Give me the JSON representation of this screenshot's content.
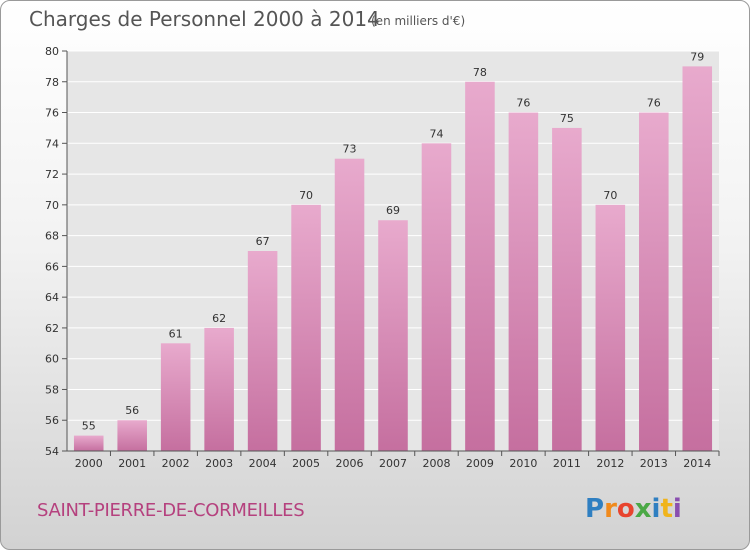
{
  "title": "Charges de Personnel 2000 à 2014",
  "subtitle": "(en milliers d'€)",
  "location": "SAINT-PIERRE-DE-CORMEILLES",
  "logo": {
    "letters": [
      "P",
      "r",
      "o",
      "x",
      "i",
      "t",
      "i"
    ],
    "colors": [
      "#2f7fc1",
      "#f08a1c",
      "#e8442e",
      "#4aa845",
      "#2f7fc1",
      "#f0b41c",
      "#8a4fb0"
    ]
  },
  "colors": {
    "bar": "#c56f9f",
    "bar_light": "#e8aacd",
    "place": "#b5417e",
    "grid": "#ffffff"
  },
  "chart_data": {
    "type": "bar",
    "categories": [
      "2000",
      "2001",
      "2002",
      "2003",
      "2004",
      "2005",
      "2006",
      "2007",
      "2008",
      "2009",
      "2010",
      "2011",
      "2012",
      "2013",
      "2014"
    ],
    "values": [
      55,
      56,
      61,
      62,
      67,
      70,
      73,
      69,
      74,
      78,
      76,
      75,
      70,
      76,
      79
    ],
    "ylim": [
      54,
      80
    ],
    "yticks": [
      54,
      56,
      58,
      60,
      62,
      64,
      66,
      68,
      70,
      72,
      74,
      76,
      78,
      80
    ],
    "grid": true,
    "legend": "none"
  }
}
